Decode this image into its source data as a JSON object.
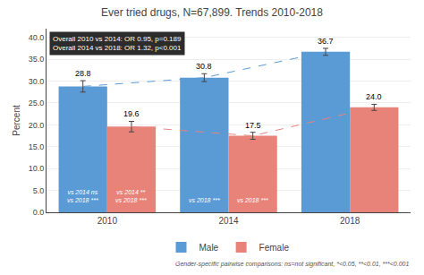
{
  "chart_data": {
    "type": "bar",
    "title": "Ever tried drugs, N=67,899. Trends 2010-2018",
    "categories": [
      "2010",
      "2014",
      "2018"
    ],
    "series": [
      {
        "name": "Male",
        "color": "#5b9bd5",
        "line_style": "dashed",
        "values": [
          28.8,
          30.8,
          36.7
        ],
        "value_labels": [
          "28.8",
          "30.8",
          "36.7"
        ],
        "errors": [
          1.3,
          0.9,
          0.8
        ],
        "bar_annotations": [
          "vs 2014 ns\nvs 2018 ***",
          "vs 2018 ***",
          null
        ]
      },
      {
        "name": "Female",
        "color": "#e8837a",
        "line_style": "dashed",
        "values": [
          19.6,
          17.5,
          24.0
        ],
        "value_labels": [
          "19.6",
          "17.5",
          "24.0"
        ],
        "errors": [
          1.2,
          0.8,
          0.7
        ],
        "bar_annotations": [
          "vs 2014 **\nvs 2018 ***",
          "vs 2018 ***",
          null
        ]
      }
    ],
    "ylabel": "Percent",
    "ylim": [
      0,
      42
    ],
    "yticks": [
      {
        "value": 0,
        "label": "0.0"
      },
      {
        "value": 5,
        "label": "5.0"
      },
      {
        "value": 10,
        "label": "10.0"
      },
      {
        "value": 15,
        "label": "15.0"
      },
      {
        "value": 20,
        "label": "20.0"
      },
      {
        "value": 25,
        "label": "25.0"
      },
      {
        "value": 30,
        "label": "30.0"
      },
      {
        "value": 35,
        "label": "35.0"
      },
      {
        "value": 40,
        "label": "40.0"
      }
    ],
    "grid": true,
    "data_labels": true,
    "legend": "bottom",
    "annotations": [
      "Overall 2010 vs 2014: OR 0.95, p=0.189\nOverall 2014 vs 2018: OR 1.32, p<0.001",
      "Gender-specific pairwise comparisons: ns=not significant, *<0.05, **<0.01, ***<0.001"
    ]
  }
}
